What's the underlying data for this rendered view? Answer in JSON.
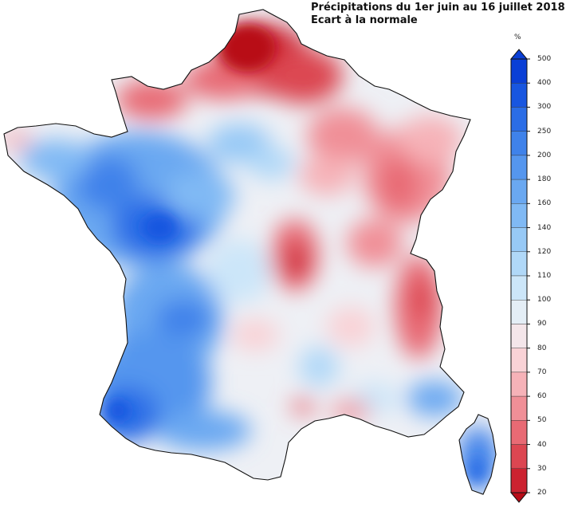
{
  "title": "Précipitations du 1er juin au 16 juillet 2018",
  "subtitle": "Ecart à la normale",
  "legend": {
    "unit": "%",
    "levels": [
      {
        "label": "500",
        "color": "#0a3fd6"
      },
      {
        "label": "400",
        "color": "#1856e0"
      },
      {
        "label": "300",
        "color": "#2b6de6"
      },
      {
        "label": "250",
        "color": "#3f82ea"
      },
      {
        "label": "200",
        "color": "#5596ee"
      },
      {
        "label": "180",
        "color": "#6aa8f1"
      },
      {
        "label": "160",
        "color": "#80b9f4"
      },
      {
        "label": "140",
        "color": "#97c9f6"
      },
      {
        "label": "120",
        "color": "#b0d8f8"
      },
      {
        "label": "110",
        "color": "#cce6f9"
      },
      {
        "label": "100",
        "color": "#e4eef6"
      },
      {
        "label": "90",
        "color": "#f4e6ea"
      },
      {
        "label": "80",
        "color": "#f9d2d6"
      },
      {
        "label": "70",
        "color": "#f6b2b8"
      },
      {
        "label": "60",
        "color": "#f08f97"
      },
      {
        "label": "50",
        "color": "#e86a74"
      },
      {
        "label": "40",
        "color": "#dc4651"
      },
      {
        "label": "30",
        "color": "#cc2230"
      },
      {
        "label": "20",
        "color": "#b80c18"
      }
    ]
  }
}
